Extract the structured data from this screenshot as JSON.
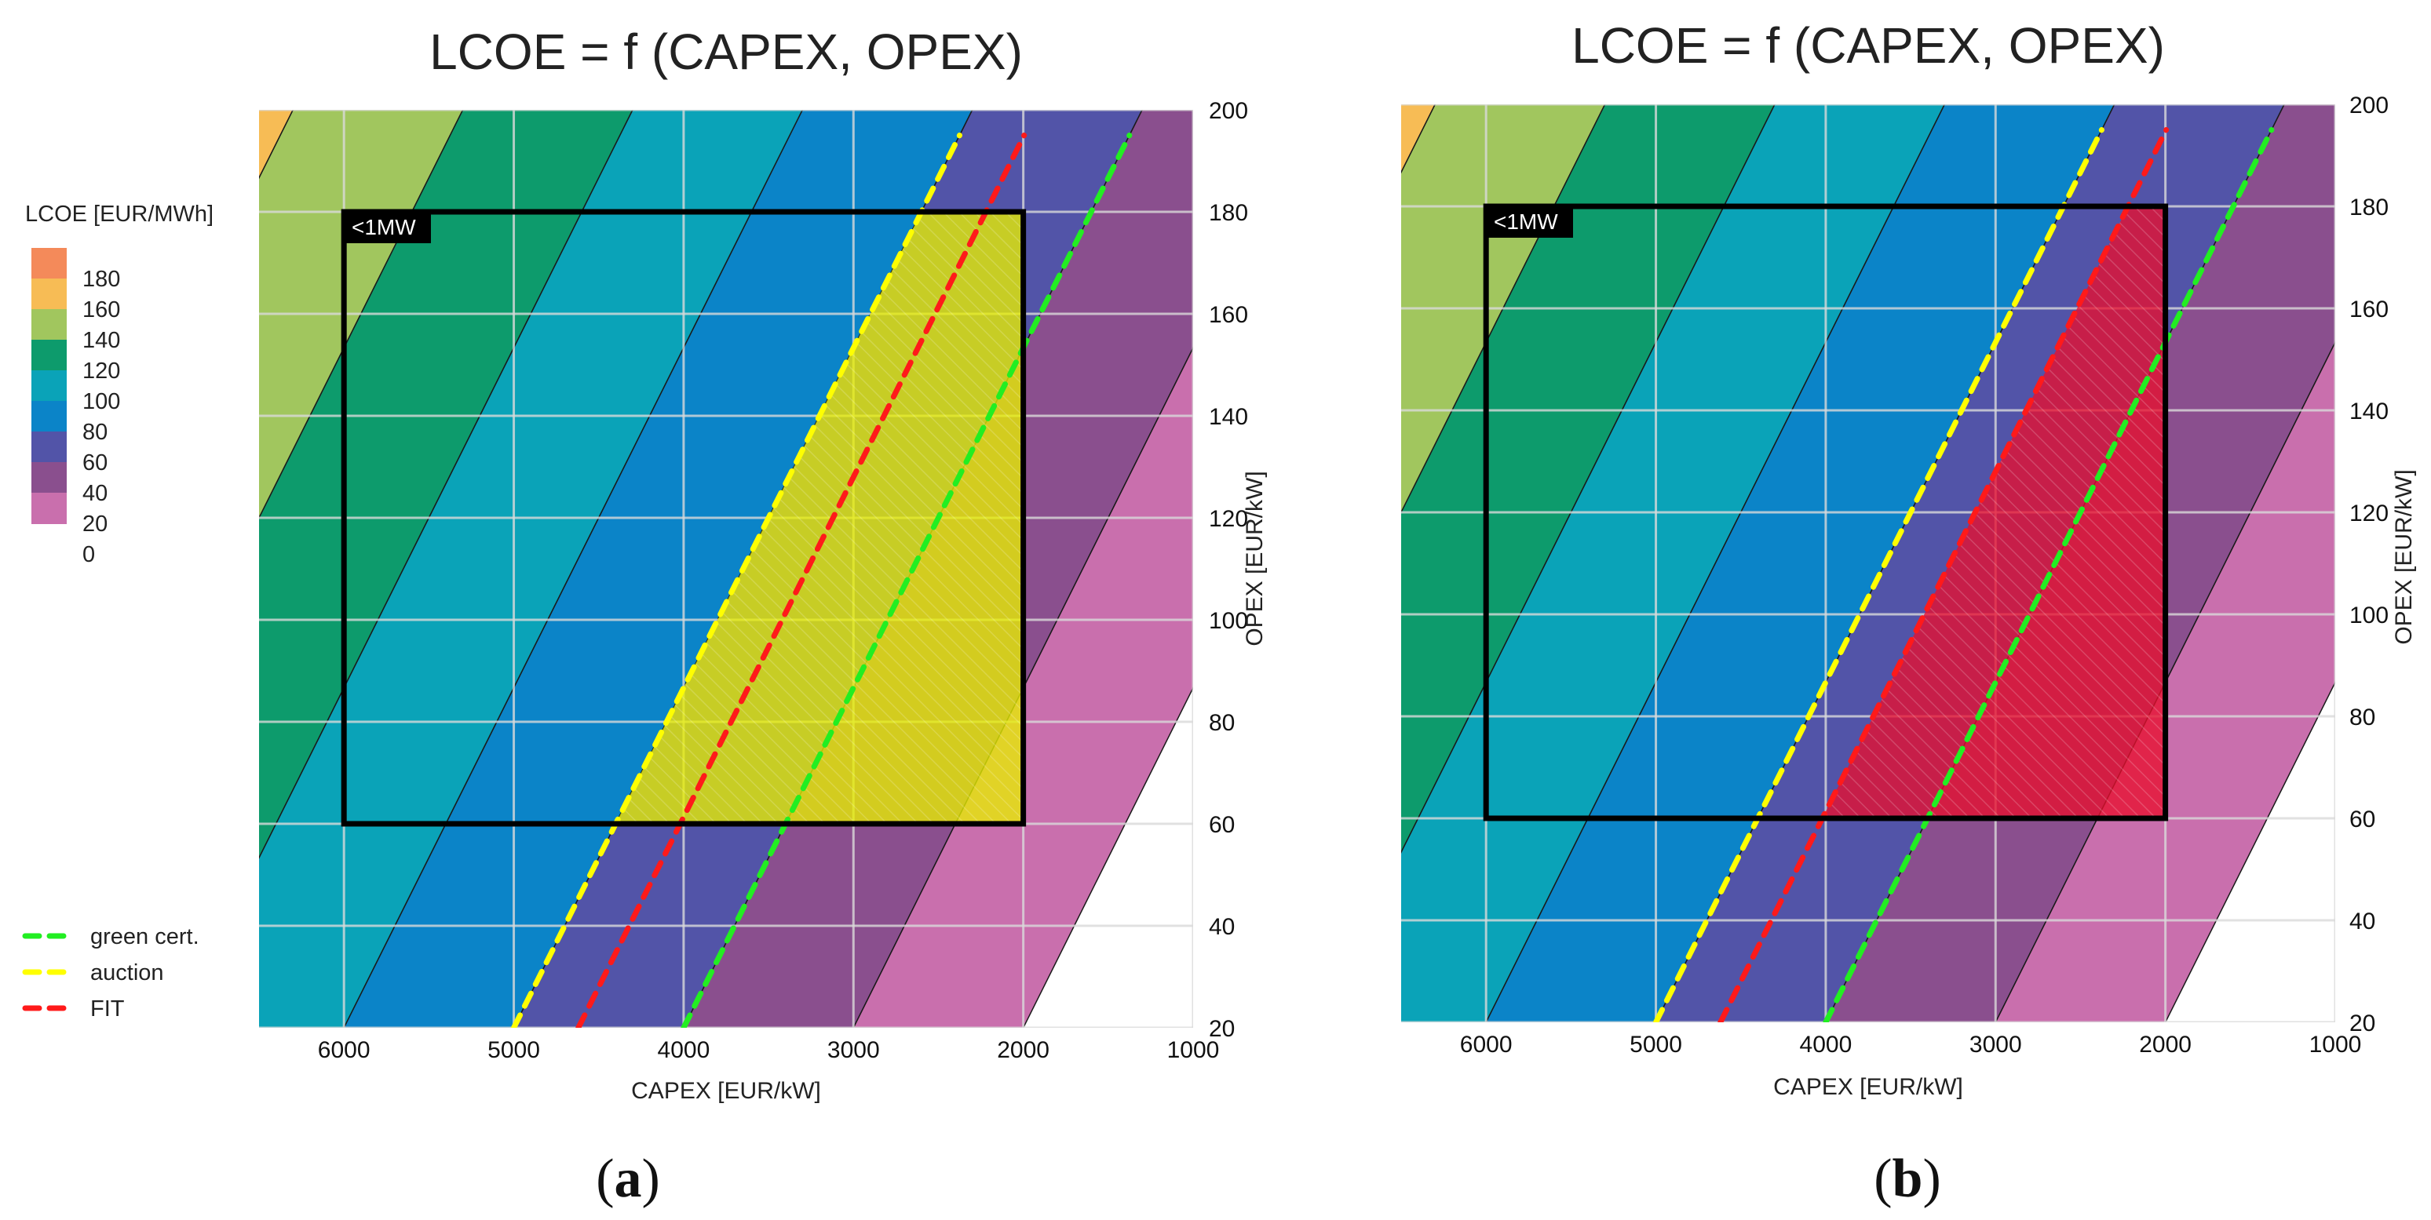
{
  "chart_data": [
    {
      "panel": "a",
      "panel_label": "a",
      "type": "heatmap",
      "title": "LCOE = f (CAPEX, OPEX)",
      "xlabel": "CAPEX [EUR/kW]",
      "ylabel": "OPEX [EUR/kW]",
      "xlim": [
        6500,
        1000
      ],
      "ylim": [
        20,
        200
      ],
      "xticks": [
        "6000",
        "5000",
        "4000",
        "3000",
        "2000",
        "1000"
      ],
      "yticks": [
        "20",
        "40",
        "60",
        "80",
        "100",
        "120",
        "140",
        "160",
        "180",
        "200"
      ],
      "box_label": "<1MW",
      "box": {
        "capex": [
          6000,
          2000
        ],
        "opex": [
          60,
          180
        ]
      },
      "lines": [
        {
          "name": "auction",
          "color": "#ffff00",
          "capex_at_opex20": 5000
        },
        {
          "name": "FIT",
          "color": "#ff1a1a",
          "capex_at_opex20": 4620
        },
        {
          "name": "green cert.",
          "color": "#22ee22",
          "capex_at_opex20": 4000
        }
      ],
      "highlight": {
        "color": "#e8f000",
        "bound_line": "auction"
      },
      "legend": {
        "title": "LCOE [EUR/MWh]",
        "levels": [
          "180",
          "160",
          "140",
          "120",
          "100",
          "80",
          "60",
          "40",
          "20",
          "0"
        ],
        "lines": [
          "green cert.",
          "auction",
          "FIT"
        ]
      }
    },
    {
      "panel": "b",
      "panel_label": "b",
      "type": "heatmap",
      "title": "LCOE = f (CAPEX, OPEX)",
      "xlabel": "CAPEX [EUR/kW]",
      "ylabel": "OPEX [EUR/kW]",
      "xlim": [
        6500,
        1000
      ],
      "ylim": [
        20,
        200
      ],
      "xticks": [
        "6000",
        "5000",
        "4000",
        "3000",
        "2000",
        "1000"
      ],
      "yticks": [
        "20",
        "40",
        "60",
        "80",
        "100",
        "120",
        "140",
        "160",
        "180",
        "200"
      ],
      "box_label": "<1MW",
      "box": {
        "capex": [
          6000,
          2000
        ],
        "opex": [
          60,
          180
        ]
      },
      "lines": [
        {
          "name": "auction",
          "color": "#ffff00",
          "capex_at_opex20": 5000
        },
        {
          "name": "FIT",
          "color": "#ff1a1a",
          "capex_at_opex20": 4620
        },
        {
          "name": "green cert.",
          "color": "#22ee22",
          "capex_at_opex20": 4000
        }
      ],
      "highlight": {
        "color": "#e8102e",
        "bound_line": "FIT"
      }
    }
  ],
  "colors": {
    "bands": [
      "#f48a5a",
      "#f7bc55",
      "#a1c65e",
      "#0d9b6c",
      "#0aa3b8",
      "#0b84c8",
      "#5254a8",
      "#8a4f8e",
      "#c96fad"
    ],
    "band_upper_lcoe": [
      null,
      180,
      160,
      140,
      120,
      100,
      80,
      60,
      40
    ]
  }
}
